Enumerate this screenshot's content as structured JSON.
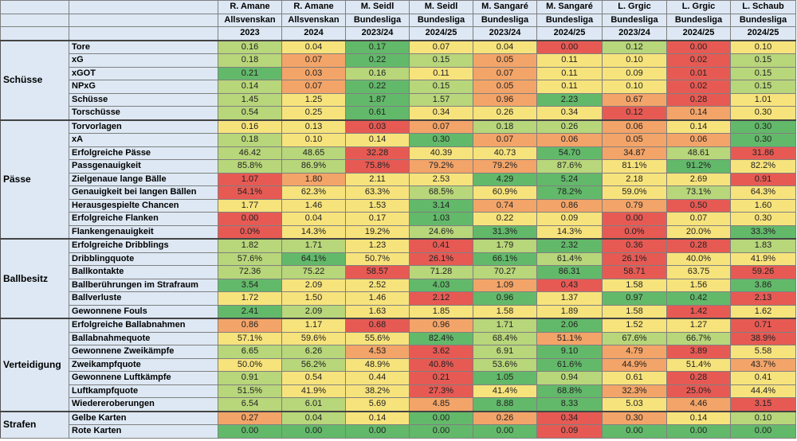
{
  "players": [
    {
      "name": "R. Amane",
      "league": "Allsvenskan",
      "season": "2023"
    },
    {
      "name": "R. Amane",
      "league": "Allsvenskan",
      "season": "2024"
    },
    {
      "name": "M. Seidl",
      "league": "Bundesliga",
      "season": "2023/24"
    },
    {
      "name": "M. Seidl",
      "league": "Bundesliga",
      "season": "2024/25"
    },
    {
      "name": "M. Sangaré",
      "league": "Bundesliga",
      "season": "2023/24"
    },
    {
      "name": "M. Sangaré",
      "league": "Bundesliga",
      "season": "2024/25"
    },
    {
      "name": "L. Grgic",
      "league": "Bundesliga",
      "season": "2023/24"
    },
    {
      "name": "L. Grgic",
      "league": "Bundesliga",
      "season": "2024/25"
    },
    {
      "name": "L. Schaub",
      "league": "Bundesliga",
      "season": "2024/25"
    }
  ],
  "colors": {
    "red": "#e75a54",
    "orange": "#f3a468",
    "yellow": "#f7e37c",
    "lightgreen": "#b8d67a",
    "green": "#63b96a"
  },
  "categories": [
    {
      "name": "Schüsse",
      "rows": [
        {
          "metric": "Tore",
          "values": [
            "0.16",
            "0.04",
            "0.17",
            "0.07",
            "0.04",
            "0.00",
            "0.12",
            "0.00",
            "0.10"
          ],
          "colors": [
            "lightgreen",
            "yellow",
            "green",
            "yellow",
            "yellow",
            "red",
            "lightgreen",
            "red",
            "yellow"
          ]
        },
        {
          "metric": "xG",
          "values": [
            "0.18",
            "0.07",
            "0.22",
            "0.15",
            "0.05",
            "0.11",
            "0.10",
            "0.02",
            "0.15"
          ],
          "colors": [
            "lightgreen",
            "orange",
            "green",
            "lightgreen",
            "orange",
            "yellow",
            "yellow",
            "red",
            "lightgreen"
          ]
        },
        {
          "metric": "xGOT",
          "values": [
            "0.21",
            "0.03",
            "0.16",
            "0.11",
            "0.07",
            "0.11",
            "0.09",
            "0.01",
            "0.15"
          ],
          "colors": [
            "green",
            "orange",
            "lightgreen",
            "yellow",
            "orange",
            "yellow",
            "yellow",
            "red",
            "lightgreen"
          ]
        },
        {
          "metric": "NPxG",
          "values": [
            "0.14",
            "0.07",
            "0.22",
            "0.15",
            "0.05",
            "0.11",
            "0.10",
            "0.02",
            "0.15"
          ],
          "colors": [
            "lightgreen",
            "orange",
            "green",
            "lightgreen",
            "orange",
            "yellow",
            "yellow",
            "red",
            "lightgreen"
          ]
        },
        {
          "metric": "Schüsse",
          "values": [
            "1.45",
            "1.25",
            "1.87",
            "1.57",
            "0.96",
            "2.23",
            "0.67",
            "0.28",
            "1.01"
          ],
          "colors": [
            "lightgreen",
            "yellow",
            "green",
            "lightgreen",
            "orange",
            "green",
            "orange",
            "red",
            "yellow"
          ]
        },
        {
          "metric": "Torschüsse",
          "values": [
            "0.54",
            "0.25",
            "0.61",
            "0.34",
            "0.26",
            "0.34",
            "0.12",
            "0.14",
            "0.30"
          ],
          "colors": [
            "lightgreen",
            "yellow",
            "green",
            "yellow",
            "yellow",
            "yellow",
            "red",
            "orange",
            "yellow"
          ]
        }
      ]
    },
    {
      "name": "Pässe",
      "rows": [
        {
          "metric": "Torvorlagen",
          "values": [
            "0.16",
            "0.13",
            "0.03",
            "0.07",
            "0.18",
            "0.26",
            "0.06",
            "0.14",
            "0.30"
          ],
          "colors": [
            "yellow",
            "yellow",
            "red",
            "orange",
            "lightgreen",
            "lightgreen",
            "orange",
            "yellow",
            "green"
          ]
        },
        {
          "metric": "xA",
          "values": [
            "0.18",
            "0.10",
            "0.14",
            "0.30",
            "0.07",
            "0.06",
            "0.05",
            "0.06",
            "0.30"
          ],
          "colors": [
            "lightgreen",
            "yellow",
            "yellow",
            "green",
            "orange",
            "orange",
            "orange",
            "orange",
            "green"
          ]
        },
        {
          "metric": "Erfolgreiche Pässe",
          "values": [
            "46.42",
            "48.65",
            "32.28",
            "40.39",
            "40.73",
            "54.70",
            "34.87",
            "48.61",
            "31.86"
          ],
          "colors": [
            "lightgreen",
            "lightgreen",
            "red",
            "yellow",
            "yellow",
            "green",
            "orange",
            "lightgreen",
            "red"
          ]
        },
        {
          "metric": "Passgenauigkeit",
          "values": [
            "85.8%",
            "86.9%",
            "75.8%",
            "79.2%",
            "79.2%",
            "87.6%",
            "81.1%",
            "91.2%",
            "82.2%"
          ],
          "colors": [
            "lightgreen",
            "lightgreen",
            "red",
            "orange",
            "orange",
            "lightgreen",
            "yellow",
            "green",
            "yellow"
          ]
        },
        {
          "metric": "Zielgenaue lange Bälle",
          "values": [
            "1.07",
            "1.80",
            "2.11",
            "2.53",
            "4.29",
            "5.24",
            "2.18",
            "2.69",
            "0.91"
          ],
          "colors": [
            "red",
            "orange",
            "yellow",
            "yellow",
            "green",
            "green",
            "yellow",
            "yellow",
            "red"
          ]
        },
        {
          "metric": "Genauigkeit bei langen Bällen",
          "values": [
            "54.1%",
            "62.3%",
            "63.3%",
            "68.5%",
            "60.9%",
            "78.2%",
            "59.0%",
            "73.1%",
            "64.3%"
          ],
          "colors": [
            "red",
            "yellow",
            "yellow",
            "lightgreen",
            "yellow",
            "green",
            "yellow",
            "lightgreen",
            "yellow"
          ]
        },
        {
          "metric": "Herausgespielte Chancen",
          "values": [
            "1.77",
            "1.46",
            "1.53",
            "3.14",
            "0.74",
            "0.86",
            "0.79",
            "0.50",
            "1.60"
          ],
          "colors": [
            "yellow",
            "yellow",
            "yellow",
            "green",
            "orange",
            "orange",
            "orange",
            "red",
            "yellow"
          ]
        },
        {
          "metric": "Erfolgreiche Flanken",
          "values": [
            "0.00",
            "0.04",
            "0.17",
            "1.03",
            "0.22",
            "0.09",
            "0.00",
            "0.07",
            "0.30"
          ],
          "colors": [
            "red",
            "yellow",
            "yellow",
            "green",
            "yellow",
            "yellow",
            "red",
            "yellow",
            "yellow"
          ]
        },
        {
          "metric": "Flankengenauigkeit",
          "values": [
            "0.0%",
            "14.3%",
            "19.2%",
            "24.6%",
            "31.3%",
            "14.3%",
            "0.0%",
            "20.0%",
            "33.3%"
          ],
          "colors": [
            "red",
            "yellow",
            "yellow",
            "lightgreen",
            "green",
            "yellow",
            "red",
            "yellow",
            "green"
          ]
        }
      ]
    },
    {
      "name": "Ballbesitz",
      "rows": [
        {
          "metric": "Erfolgreiche Dribblings",
          "values": [
            "1.82",
            "1.71",
            "1.23",
            "0.41",
            "1.79",
            "2.32",
            "0.36",
            "0.28",
            "1.83"
          ],
          "colors": [
            "lightgreen",
            "lightgreen",
            "yellow",
            "red",
            "lightgreen",
            "green",
            "red",
            "red",
            "lightgreen"
          ]
        },
        {
          "metric": "Dribblingquote",
          "values": [
            "57.6%",
            "64.1%",
            "50.7%",
            "26.1%",
            "66.1%",
            "61.4%",
            "26.1%",
            "40.0%",
            "41.9%"
          ],
          "colors": [
            "lightgreen",
            "green",
            "yellow",
            "red",
            "green",
            "lightgreen",
            "red",
            "yellow",
            "yellow"
          ]
        },
        {
          "metric": "Ballkontakte",
          "values": [
            "72.36",
            "75.22",
            "58.57",
            "71.28",
            "70.27",
            "86.31",
            "58.71",
            "63.75",
            "59.26"
          ],
          "colors": [
            "lightgreen",
            "lightgreen",
            "red",
            "lightgreen",
            "lightgreen",
            "green",
            "red",
            "yellow",
            "red"
          ]
        },
        {
          "metric": "Ballberührungen im Strafraum",
          "values": [
            "3.54",
            "2.09",
            "2.52",
            "4.03",
            "1.09",
            "0.43",
            "1.58",
            "1.56",
            "3.86"
          ],
          "colors": [
            "green",
            "yellow",
            "yellow",
            "green",
            "orange",
            "red",
            "yellow",
            "yellow",
            "green"
          ]
        },
        {
          "metric": "Ballverluste",
          "values": [
            "1.72",
            "1.50",
            "1.46",
            "2.12",
            "0.96",
            "1.37",
            "0.97",
            "0.42",
            "2.13"
          ],
          "colors": [
            "yellow",
            "yellow",
            "yellow",
            "red",
            "green",
            "yellow",
            "green",
            "green",
            "red"
          ]
        },
        {
          "metric": "Gewonnene Fouls",
          "values": [
            "2.41",
            "2.09",
            "1.63",
            "1.85",
            "1.58",
            "1.89",
            "1.58",
            "1.42",
            "1.62"
          ],
          "colors": [
            "green",
            "lightgreen",
            "yellow",
            "yellow",
            "yellow",
            "yellow",
            "yellow",
            "red",
            "yellow"
          ]
        }
      ]
    },
    {
      "name": "Verteidigung",
      "rows": [
        {
          "metric": "Erfolgreiche Ballabnahmen",
          "values": [
            "0.86",
            "1.17",
            "0.68",
            "0.96",
            "1.71",
            "2.06",
            "1.52",
            "1.27",
            "0.71"
          ],
          "colors": [
            "orange",
            "yellow",
            "red",
            "orange",
            "lightgreen",
            "green",
            "yellow",
            "yellow",
            "red"
          ]
        },
        {
          "metric": "Ballabnahmequote",
          "values": [
            "57.1%",
            "59.6%",
            "55.6%",
            "82.4%",
            "68.4%",
            "51.1%",
            "67.6%",
            "66.7%",
            "38.9%"
          ],
          "colors": [
            "yellow",
            "yellow",
            "yellow",
            "green",
            "lightgreen",
            "orange",
            "lightgreen",
            "lightgreen",
            "red"
          ]
        },
        {
          "metric": "Gewonnene Zweikämpfe",
          "values": [
            "6.65",
            "6.26",
            "4.53",
            "3.62",
            "6.91",
            "9.10",
            "4.79",
            "3.89",
            "5.58"
          ],
          "colors": [
            "lightgreen",
            "lightgreen",
            "orange",
            "red",
            "lightgreen",
            "green",
            "orange",
            "red",
            "yellow"
          ]
        },
        {
          "metric": "Zweikampfquote",
          "values": [
            "50.0%",
            "56.2%",
            "48.9%",
            "40.8%",
            "53.6%",
            "61.6%",
            "44.9%",
            "51.4%",
            "43.7%"
          ],
          "colors": [
            "yellow",
            "lightgreen",
            "yellow",
            "red",
            "lightgreen",
            "green",
            "orange",
            "yellow",
            "orange"
          ]
        },
        {
          "metric": "Gewonnene Luftkämpfe",
          "values": [
            "0.91",
            "0.54",
            "0.44",
            "0.21",
            "1.05",
            "0.94",
            "0.61",
            "0.28",
            "0.41"
          ],
          "colors": [
            "lightgreen",
            "yellow",
            "yellow",
            "red",
            "green",
            "lightgreen",
            "yellow",
            "red",
            "yellow"
          ]
        },
        {
          "metric": "Luftkampfquote",
          "values": [
            "51.5%",
            "41.9%",
            "38.2%",
            "27.3%",
            "41.4%",
            "68.8%",
            "32.3%",
            "25.0%",
            "44.4%"
          ],
          "colors": [
            "lightgreen",
            "yellow",
            "yellow",
            "red",
            "yellow",
            "green",
            "orange",
            "red",
            "yellow"
          ]
        },
        {
          "metric": "Wiedereroberungen",
          "values": [
            "6.54",
            "6.01",
            "5.69",
            "4.85",
            "8.88",
            "8.33",
            "5.03",
            "4.46",
            "3.15"
          ],
          "colors": [
            "lightgreen",
            "lightgreen",
            "yellow",
            "orange",
            "green",
            "green",
            "yellow",
            "orange",
            "red"
          ]
        }
      ]
    },
    {
      "name": "Strafen",
      "rows": [
        {
          "metric": "Gelbe Karten",
          "values": [
            "0.27",
            "0.04",
            "0.14",
            "0.00",
            "0.26",
            "0.34",
            "0.30",
            "0.14",
            "0.10"
          ],
          "colors": [
            "orange",
            "lightgreen",
            "yellow",
            "green",
            "orange",
            "red",
            "orange",
            "yellow",
            "lightgreen"
          ]
        },
        {
          "metric": "Rote Karten",
          "values": [
            "0.00",
            "0.00",
            "0.00",
            "0.00",
            "0.00",
            "0.09",
            "0.00",
            "0.00",
            "0.00"
          ],
          "colors": [
            "green",
            "green",
            "green",
            "green",
            "green",
            "red",
            "green",
            "green",
            "green"
          ]
        }
      ]
    }
  ]
}
